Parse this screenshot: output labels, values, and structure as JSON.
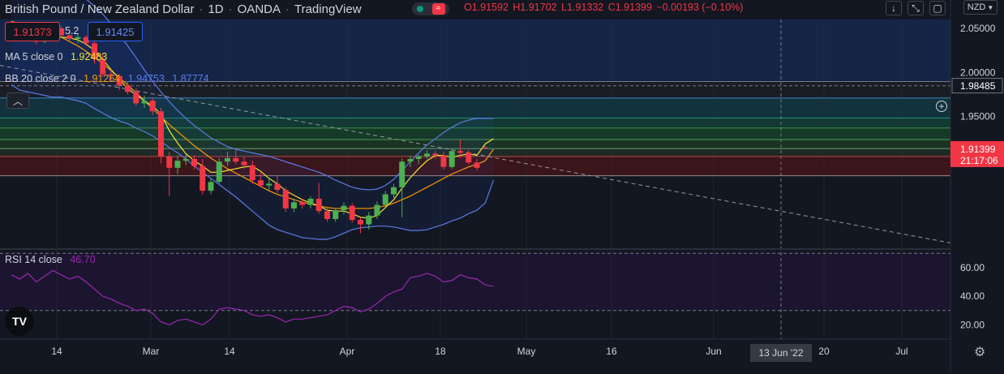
{
  "header": {
    "symbol": "British Pound / New Zealand Dollar",
    "interval": "1D",
    "broker": "OANDA",
    "platform": "TradingView",
    "open": "O1.91592",
    "high": "H1.91702",
    "low": "L1.91332",
    "close": "C1.91399",
    "change": "−0.00193 (−0.10%)"
  },
  "toolbar": {
    "currency": "NZD"
  },
  "order": {
    "sell_price": "1.91373",
    "spread": "5.2",
    "buy_price": "1.91425"
  },
  "indicators": {
    "ma_label": "MA 5 close 0",
    "ma_value": "1.92483",
    "bb_label": "BB 20 close 2 0",
    "bb_basis": "1.91264",
    "bb_upper": "1.94753",
    "bb_lower": "1.87774",
    "rsi_label": "RSI 14 close",
    "rsi_value": "46.70"
  },
  "price_axis": {
    "ticks": [
      "2.05000",
      "2.00000",
      "1.95000"
    ],
    "marker_price": "1.98485",
    "last_price": "1.91399",
    "countdown": "21:17:06"
  },
  "rsi_axis": {
    "ticks": [
      "60.00",
      "40.00",
      "20.00"
    ]
  },
  "time_axis": {
    "ticks": [
      "14",
      "Mar",
      "14",
      "Apr",
      "18",
      "May",
      "16",
      "Jun",
      "20",
      "Jul"
    ],
    "crosshair_label": "13 Jun '22"
  },
  "colors": {
    "up": "#4caf50",
    "down": "#f23645",
    "ma": "#f4e32f",
    "bb_basis": "#ff9800",
    "bb_band": "#5b7be8",
    "rsi": "#9c27b0",
    "trend": "#9598a1"
  },
  "chart_data": {
    "type": "candlestick",
    "price_scale": {
      "min": 1.8,
      "max": 2.06
    },
    "candles": [
      {
        "t": "Feb 07",
        "o": 2.051,
        "h": 2.056,
        "l": 2.04,
        "c": 2.045
      },
      {
        "t": "Feb 08",
        "o": 2.045,
        "h": 2.052,
        "l": 2.04,
        "c": 2.048
      },
      {
        "t": "Feb 09",
        "o": 2.048,
        "h": 2.051,
        "l": 2.04,
        "c": 2.042
      },
      {
        "t": "Feb 10",
        "o": 2.042,
        "h": 2.046,
        "l": 2.032,
        "c": 2.035
      },
      {
        "t": "Feb 11",
        "o": 2.035,
        "h": 2.05,
        "l": 2.033,
        "c": 2.046
      },
      {
        "t": "Feb 14",
        "o": 2.046,
        "h": 2.055,
        "l": 2.042,
        "c": 2.05
      },
      {
        "t": "Feb 15",
        "o": 2.05,
        "h": 2.053,
        "l": 2.039,
        "c": 2.042
      },
      {
        "t": "Feb 16",
        "o": 2.042,
        "h": 2.046,
        "l": 2.034,
        "c": 2.038
      },
      {
        "t": "Feb 17",
        "o": 2.038,
        "h": 2.044,
        "l": 2.033,
        "c": 2.04
      },
      {
        "t": "Feb 18",
        "o": 2.04,
        "h": 2.042,
        "l": 2.03,
        "c": 2.033
      },
      {
        "t": "Feb 21",
        "o": 2.033,
        "h": 2.036,
        "l": 2.01,
        "c": 2.015
      },
      {
        "t": "Feb 22",
        "o": 2.015,
        "h": 2.02,
        "l": 1.995,
        "c": 1.998
      },
      {
        "t": "Feb 23",
        "o": 1.998,
        "h": 2.003,
        "l": 1.99,
        "c": 1.996
      },
      {
        "t": "Feb 24",
        "o": 1.996,
        "h": 1.998,
        "l": 1.98,
        "c": 1.985
      },
      {
        "t": "Feb 25",
        "o": 1.985,
        "h": 1.989,
        "l": 1.975,
        "c": 1.978
      },
      {
        "t": "Feb 28",
        "o": 1.978,
        "h": 1.982,
        "l": 1.962,
        "c": 1.965
      },
      {
        "t": "Mar 01",
        "o": 1.965,
        "h": 1.974,
        "l": 1.96,
        "c": 1.968
      },
      {
        "t": "Mar 02",
        "o": 1.968,
        "h": 1.971,
        "l": 1.952,
        "c": 1.956
      },
      {
        "t": "Mar 03",
        "o": 1.956,
        "h": 1.96,
        "l": 1.897,
        "c": 1.905
      },
      {
        "t": "Mar 04",
        "o": 1.905,
        "h": 1.91,
        "l": 1.86,
        "c": 1.892
      },
      {
        "t": "Mar 07",
        "o": 1.892,
        "h": 1.906,
        "l": 1.885,
        "c": 1.9
      },
      {
        "t": "Mar 08",
        "o": 1.9,
        "h": 1.908,
        "l": 1.895,
        "c": 1.902
      },
      {
        "t": "Mar 09",
        "o": 1.902,
        "h": 1.906,
        "l": 1.89,
        "c": 1.894
      },
      {
        "t": "Mar 10",
        "o": 1.894,
        "h": 1.902,
        "l": 1.862,
        "c": 1.866
      },
      {
        "t": "Mar 11",
        "o": 1.866,
        "h": 1.88,
        "l": 1.862,
        "c": 1.876
      },
      {
        "t": "Mar 14",
        "o": 1.876,
        "h": 1.903,
        "l": 1.874,
        "c": 1.899
      },
      {
        "t": "Mar 15",
        "o": 1.899,
        "h": 1.91,
        "l": 1.894,
        "c": 1.903
      },
      {
        "t": "Mar 16",
        "o": 1.903,
        "h": 1.912,
        "l": 1.896,
        "c": 1.899
      },
      {
        "t": "Mar 17",
        "o": 1.899,
        "h": 1.904,
        "l": 1.891,
        "c": 1.895
      },
      {
        "t": "Mar 18",
        "o": 1.895,
        "h": 1.9,
        "l": 1.874,
        "c": 1.878
      },
      {
        "t": "Mar 21",
        "o": 1.878,
        "h": 1.886,
        "l": 1.87,
        "c": 1.872
      },
      {
        "t": "Mar 22",
        "o": 1.872,
        "h": 1.879,
        "l": 1.866,
        "c": 1.874
      },
      {
        "t": "Mar 23",
        "o": 1.874,
        "h": 1.883,
        "l": 1.864,
        "c": 1.867
      },
      {
        "t": "Mar 24",
        "o": 1.867,
        "h": 1.87,
        "l": 1.842,
        "c": 1.846
      },
      {
        "t": "Mar 25",
        "o": 1.846,
        "h": 1.857,
        "l": 1.842,
        "c": 1.853
      },
      {
        "t": "Mar 28",
        "o": 1.853,
        "h": 1.857,
        "l": 1.846,
        "c": 1.85
      },
      {
        "t": "Mar 29",
        "o": 1.85,
        "h": 1.86,
        "l": 1.846,
        "c": 1.857
      },
      {
        "t": "Mar 30",
        "o": 1.857,
        "h": 1.875,
        "l": 1.84,
        "c": 1.843
      },
      {
        "t": "Mar 31",
        "o": 1.843,
        "h": 1.848,
        "l": 1.831,
        "c": 1.834
      },
      {
        "t": "Apr 01",
        "o": 1.834,
        "h": 1.846,
        "l": 1.831,
        "c": 1.844
      },
      {
        "t": "Apr 04",
        "o": 1.844,
        "h": 1.853,
        "l": 1.839,
        "c": 1.849
      },
      {
        "t": "Apr 05",
        "o": 1.849,
        "h": 1.852,
        "l": 1.83,
        "c": 1.833
      },
      {
        "t": "Apr 06",
        "o": 1.833,
        "h": 1.836,
        "l": 1.818,
        "c": 1.828
      },
      {
        "t": "Apr 07",
        "o": 1.828,
        "h": 1.842,
        "l": 1.822,
        "c": 1.838
      },
      {
        "t": "Apr 08",
        "o": 1.838,
        "h": 1.854,
        "l": 1.834,
        "c": 1.85
      },
      {
        "t": "Apr 11",
        "o": 1.85,
        "h": 1.866,
        "l": 1.846,
        "c": 1.862
      },
      {
        "t": "Apr 12",
        "o": 1.862,
        "h": 1.874,
        "l": 1.858,
        "c": 1.87
      },
      {
        "t": "Apr 13",
        "o": 1.87,
        "h": 1.903,
        "l": 1.836,
        "c": 1.899
      },
      {
        "t": "Apr 14",
        "o": 1.899,
        "h": 1.906,
        "l": 1.893,
        "c": 1.902
      },
      {
        "t": "Apr 18",
        "o": 1.902,
        "h": 1.907,
        "l": 1.896,
        "c": 1.905
      },
      {
        "t": "Apr 19",
        "o": 1.905,
        "h": 1.912,
        "l": 1.902,
        "c": 1.908
      },
      {
        "t": "Apr 20",
        "o": 1.908,
        "h": 1.911,
        "l": 1.902,
        "c": 1.906
      },
      {
        "t": "Apr 21",
        "o": 1.906,
        "h": 1.91,
        "l": 1.89,
        "c": 1.893
      },
      {
        "t": "Apr 22",
        "o": 1.893,
        "h": 1.914,
        "l": 1.891,
        "c": 1.911
      },
      {
        "t": "Apr 25",
        "o": 1.911,
        "h": 1.924,
        "l": 1.903,
        "c": 1.909
      },
      {
        "t": "Apr 26",
        "o": 1.909,
        "h": 1.912,
        "l": 1.896,
        "c": 1.898
      },
      {
        "t": "Apr 27",
        "o": 1.898,
        "h": 1.902,
        "l": 1.889,
        "c": 1.892
      },
      {
        "t": "Apr 28",
        "o": 1.915,
        "h": 1.917,
        "l": 1.913,
        "c": 1.914
      }
    ],
    "ma": [
      2.044,
      2.043,
      2.043,
      2.042,
      2.041,
      2.04,
      2.04,
      2.039,
      2.037,
      2.032,
      2.025,
      2.015,
      2.003,
      1.993,
      1.981,
      1.975,
      1.968,
      1.962,
      1.953,
      1.934,
      1.92,
      1.908,
      1.9,
      1.894,
      1.887,
      1.887,
      1.889,
      1.891,
      1.893,
      1.894,
      1.888,
      1.88,
      1.874,
      1.866,
      1.861,
      1.856,
      1.852,
      1.849,
      1.844,
      1.843,
      1.843,
      1.84,
      1.836,
      1.835,
      1.838,
      1.847,
      1.856,
      1.869,
      1.881,
      1.891,
      1.9,
      1.906,
      1.906,
      1.904,
      1.906,
      1.908,
      1.906,
      1.919,
      1.925
    ],
    "bb_basis": [
      2.058,
      2.055,
      2.053,
      2.05,
      2.047,
      2.043,
      2.04,
      2.035,
      2.03,
      2.024,
      2.017,
      2.01,
      2.002,
      1.994,
      1.986,
      1.977,
      1.968,
      1.959,
      1.95,
      1.941,
      1.933,
      1.925,
      1.917,
      1.91,
      1.903,
      1.897,
      1.891,
      1.886,
      1.881,
      1.876,
      1.871,
      1.866,
      1.862,
      1.859,
      1.856,
      1.853,
      1.851,
      1.849,
      1.847,
      1.846,
      1.846,
      1.846,
      1.846,
      1.846,
      1.847,
      1.849,
      1.852,
      1.856,
      1.86,
      1.865,
      1.87,
      1.875,
      1.88,
      1.885,
      1.889,
      1.893,
      1.896,
      1.9,
      1.913
    ],
    "bb_upper": [
      2.13,
      2.13,
      2.128,
      2.124,
      2.12,
      2.114,
      2.108,
      2.1,
      2.092,
      2.083,
      2.075,
      2.066,
      2.055,
      2.043,
      2.03,
      2.017,
      2.003,
      1.99,
      1.978,
      1.967,
      1.957,
      1.948,
      1.94,
      1.933,
      1.926,
      1.921,
      1.916,
      1.913,
      1.911,
      1.909,
      1.907,
      1.905,
      1.902,
      1.899,
      1.896,
      1.893,
      1.89,
      1.887,
      1.883,
      1.878,
      1.874,
      1.87,
      1.868,
      1.867,
      1.868,
      1.872,
      1.879,
      1.889,
      1.899,
      1.909,
      1.918,
      1.925,
      1.932,
      1.938,
      1.943,
      1.946,
      1.948,
      1.948,
      1.948
    ],
    "bb_lower": [
      1.986,
      1.98,
      1.978,
      1.976,
      1.974,
      1.972,
      1.972,
      1.97,
      1.968,
      1.965,
      1.959,
      1.954,
      1.949,
      1.945,
      1.942,
      1.937,
      1.933,
      1.928,
      1.922,
      1.915,
      1.909,
      1.902,
      1.894,
      1.887,
      1.88,
      1.873,
      1.866,
      1.859,
      1.851,
      1.843,
      1.835,
      1.827,
      1.822,
      1.819,
      1.816,
      1.813,
      1.812,
      1.811,
      1.811,
      1.814,
      1.818,
      1.822,
      1.824,
      1.825,
      1.826,
      1.826,
      1.825,
      1.823,
      1.821,
      1.821,
      1.822,
      1.825,
      1.828,
      1.832,
      1.835,
      1.84,
      1.844,
      1.852,
      1.878
    ],
    "rsi": {
      "min": 10,
      "max": 73,
      "upper_band": 70,
      "lower_band": 30,
      "values": [
        55,
        52,
        56,
        50,
        54,
        58,
        55,
        52,
        54,
        50,
        45,
        40,
        38,
        35,
        33,
        30,
        31,
        28,
        22,
        20,
        23,
        24,
        22,
        20,
        24,
        31,
        32,
        31,
        30,
        27,
        26,
        27,
        25,
        22,
        24,
        24,
        25,
        26,
        27,
        30,
        33,
        32,
        29,
        31,
        35,
        40,
        43,
        45,
        53,
        54,
        56,
        54,
        50,
        51,
        55,
        53,
        52,
        48,
        47
      ]
    },
    "trendline": [
      2.008,
      1.807
    ],
    "horizontal_levels": [
      1.9897,
      1.9711,
      1.9484,
      1.9371,
      1.924,
      1.9138,
      1.9049,
      1.883
    ]
  }
}
